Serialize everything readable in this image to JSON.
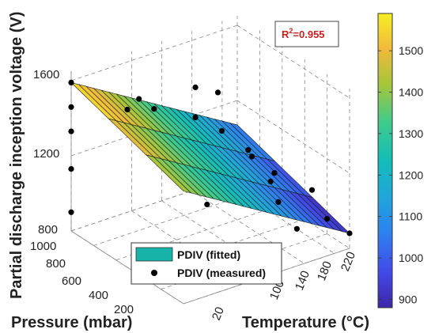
{
  "chart_data": {
    "type": "surface3d",
    "title": "",
    "xlabel": "Pressure (mbar)",
    "ylabel": "Temperature (°C)",
    "zlabel": "Partial discharge inception voltage (V)",
    "x_ticks": [
      "1000",
      "800",
      "600",
      "400",
      "200"
    ],
    "y_ticks": [
      "20",
      "100",
      "140",
      "180",
      "220"
    ],
    "z_ticks": [
      "800",
      "1200",
      "1600"
    ],
    "xlim": [
      0,
      1000
    ],
    "ylim": [
      20,
      240
    ],
    "zlim": [
      800,
      1650
    ],
    "colorbar": {
      "ticks": [
        "900",
        "1000",
        "1100",
        "1200",
        "1300",
        "1400",
        "1500"
      ],
      "range": [
        880,
        1590
      ]
    },
    "annotation": {
      "prefix": "R",
      "sup": "2",
      "value": "=0.955"
    },
    "legend": [
      {
        "label": "PDIV (fitted)",
        "marker": "surface"
      },
      {
        "label": "PDIV (measured)",
        "marker": "dot"
      }
    ],
    "fitted_surface": {
      "corners": [
        {
          "pressure": 1000,
          "temperature": 20,
          "pdiv": 1590
        },
        {
          "pressure": 0,
          "temperature": 20,
          "pdiv": 1400
        },
        {
          "pressure": 1000,
          "temperature": 240,
          "pdiv": 1070
        },
        {
          "pressure": 0,
          "temperature": 240,
          "pdiv": 880
        }
      ]
    },
    "measured_points": [
      {
        "pressure": 1000,
        "temperature": 20,
        "pdiv": 1590
      },
      {
        "pressure": 1000,
        "temperature": 20,
        "pdiv": 1460
      },
      {
        "pressure": 1000,
        "temperature": 20,
        "pdiv": 1330
      },
      {
        "pressure": 1000,
        "temperature": 20,
        "pdiv": 1130
      },
      {
        "pressure": 1000,
        "temperature": 20,
        "pdiv": 900
      },
      {
        "pressure": 500,
        "temperature": 20,
        "pdiv": 1640
      },
      {
        "pressure": 800,
        "temperature": 80,
        "pdiv": 1500
      },
      {
        "pressure": 800,
        "temperature": 100,
        "pdiv": 1420
      },
      {
        "pressure": 700,
        "temperature": 140,
        "pdiv": 1520
      },
      {
        "pressure": 500,
        "temperature": 140,
        "pdiv": 1570
      },
      {
        "pressure": 700,
        "temperature": 140,
        "pdiv": 1360
      },
      {
        "pressure": 600,
        "temperature": 160,
        "pdiv": 1300
      },
      {
        "pressure": 500,
        "temperature": 180,
        "pdiv": 1210
      },
      {
        "pressure": 300,
        "temperature": 180,
        "pdiv": 1120
      },
      {
        "pressure": 600,
        "temperature": 200,
        "pdiv": 1110
      },
      {
        "pressure": 400,
        "temperature": 200,
        "pdiv": 1100
      },
      {
        "pressure": 200,
        "temperature": 220,
        "pdiv": 1060
      },
      {
        "pressure": 1000,
        "temperature": 200,
        "pdiv": 700
      },
      {
        "pressure": 200,
        "temperature": 200,
        "pdiv": 880
      },
      {
        "pressure": 500,
        "temperature": 220,
        "pdiv": 880
      },
      {
        "pressure": 200,
        "temperature": 240,
        "pdiv": 880
      },
      {
        "pressure": 0,
        "temperature": 240,
        "pdiv": 880
      }
    ],
    "grid": true
  }
}
